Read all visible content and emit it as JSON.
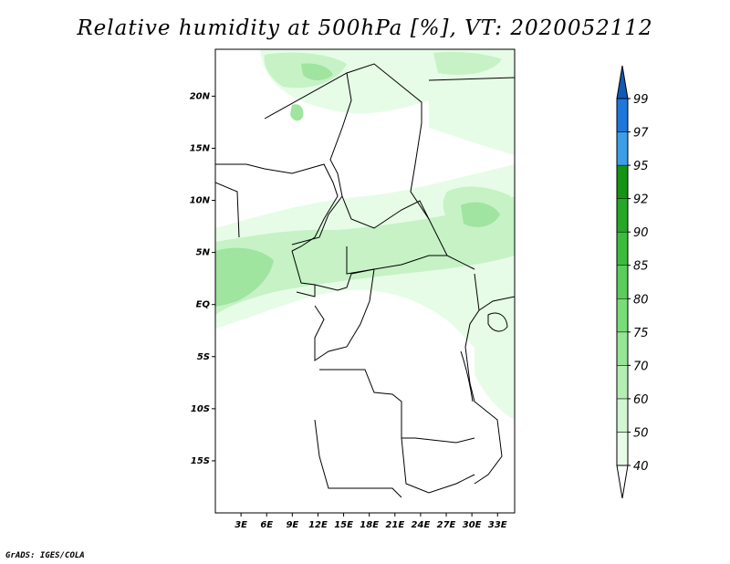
{
  "title": "Relative humidity at 500hPa [%], VT: 2020052112",
  "credit": "GrADS: IGES/COLA",
  "map": {
    "lon_range": [
      0,
      35
    ],
    "lat_range": [
      -20,
      24.5
    ],
    "lat_ticks": [
      {
        "value": 20,
        "label": "20N"
      },
      {
        "value": 15,
        "label": "15N"
      },
      {
        "value": 10,
        "label": "10N"
      },
      {
        "value": 5,
        "label": "5N"
      },
      {
        "value": 0,
        "label": "EQ"
      },
      {
        "value": -5,
        "label": "5S"
      },
      {
        "value": -10,
        "label": "10S"
      },
      {
        "value": -15,
        "label": "15S"
      }
    ],
    "lon_ticks": [
      {
        "value": 3,
        "label": "3E"
      },
      {
        "value": 6,
        "label": "6E"
      },
      {
        "value": 9,
        "label": "9E"
      },
      {
        "value": 12,
        "label": "12E"
      },
      {
        "value": 15,
        "label": "15E"
      },
      {
        "value": 18,
        "label": "18E"
      },
      {
        "value": 21,
        "label": "21E"
      },
      {
        "value": 24,
        "label": "24E"
      },
      {
        "value": 27,
        "label": "27E"
      },
      {
        "value": 30,
        "label": "30E"
      },
      {
        "value": 33,
        "label": "33E"
      }
    ]
  },
  "colorbar": {
    "levels": [
      "40",
      "50",
      "60",
      "70",
      "75",
      "80",
      "85",
      "90",
      "92",
      "95",
      "97",
      "99"
    ],
    "colors": [
      "#ffffff",
      "#e6fce6",
      "#d1f6d1",
      "#b4eeb4",
      "#96e696",
      "#78dc78",
      "#5acd5a",
      "#3cbc3c",
      "#25a825",
      "#139413",
      "#3c9ee6",
      "#1e78dc",
      "#0f5ab4"
    ]
  }
}
